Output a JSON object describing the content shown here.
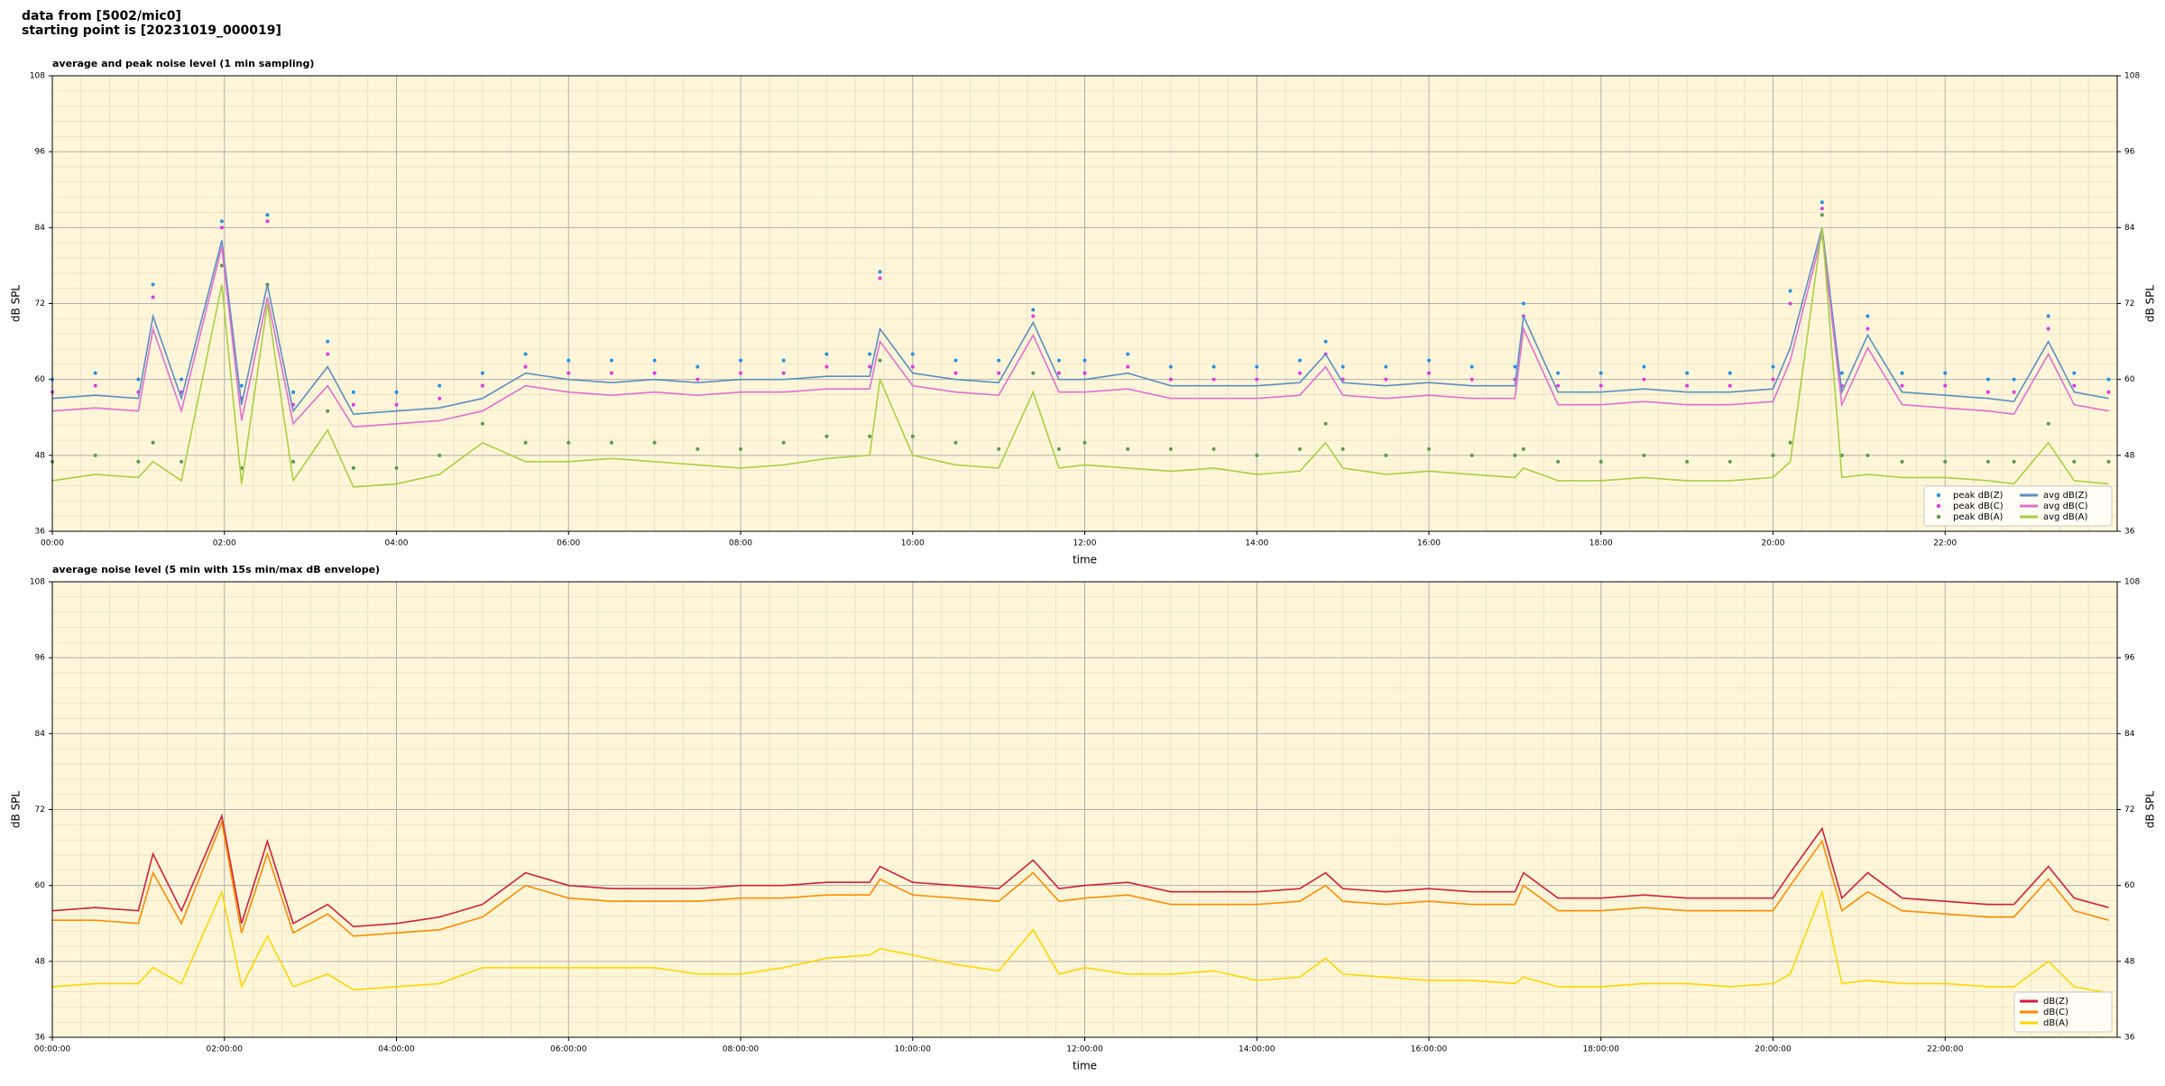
{
  "page_title": [
    "data from [5002/mic0]",
    "starting point is [20231019_000019]"
  ],
  "chart_data": [
    {
      "type": "line",
      "title": "average and peak noise level (1 min sampling)",
      "xlabel": "time",
      "ylabel": "dB SPL",
      "xlim": [
        0,
        24
      ],
      "ylim": [
        36,
        108
      ],
      "yticks": [
        36,
        48,
        60,
        72,
        84,
        96,
        108
      ],
      "xticks": [
        {
          "value": 0,
          "label": "00:00"
        },
        {
          "value": 2,
          "label": "02:00"
        },
        {
          "value": 4,
          "label": "04:00"
        },
        {
          "value": 6,
          "label": "06:00"
        },
        {
          "value": 8,
          "label": "08:00"
        },
        {
          "value": 10,
          "label": "10:00"
        },
        {
          "value": 12,
          "label": "12:00"
        },
        {
          "value": 14,
          "label": "14:00"
        },
        {
          "value": 16,
          "label": "16:00"
        },
        {
          "value": 18,
          "label": "18:00"
        },
        {
          "value": 20,
          "label": "20:00"
        },
        {
          "value": 22,
          "label": "22:00"
        }
      ],
      "grid": true,
      "minor_grid": true,
      "background": "#fff6d9",
      "legend": "lower right",
      "legend_columns": 2,
      "x": [
        0,
        0.5,
        1,
        1.17,
        1.5,
        1.97,
        2.2,
        2.5,
        2.8,
        3.2,
        3.5,
        4,
        4.5,
        5,
        5.5,
        6,
        6.5,
        7,
        7.5,
        8,
        8.5,
        9,
        9.5,
        9.62,
        10,
        10.5,
        11,
        11.4,
        11.7,
        12,
        12.5,
        13,
        13.5,
        14,
        14.5,
        14.8,
        15,
        15.5,
        16,
        16.5,
        17,
        17.1,
        17.5,
        18,
        18.5,
        19,
        19.5,
        20,
        20.2,
        20.57,
        20.8,
        21.1,
        21.5,
        22,
        22.5,
        22.8,
        23.2,
        23.5,
        23.9
      ],
      "series": [
        {
          "name": "peak dB(Z)",
          "mode": "points",
          "color": "#2a8fe0",
          "values": [
            60,
            61,
            60,
            75,
            60,
            85,
            59,
            86,
            58,
            66,
            58,
            58,
            59,
            61,
            64,
            63,
            63,
            63,
            62,
            63,
            63,
            64,
            64,
            77,
            64,
            63,
            63,
            71,
            63,
            63,
            64,
            62,
            62,
            62,
            63,
            66,
            62,
            62,
            63,
            62,
            62,
            72,
            61,
            61,
            62,
            61,
            61,
            62,
            74,
            88,
            61,
            70,
            61,
            61,
            60,
            60,
            70,
            61,
            60
          ]
        },
        {
          "name": "peak dB(C)",
          "mode": "points",
          "color": "#e03ae0",
          "values": [
            58,
            59,
            58,
            73,
            58,
            84,
            57,
            85,
            56,
            64,
            56,
            56,
            57,
            59,
            62,
            61,
            61,
            61,
            60,
            61,
            61,
            62,
            62,
            76,
            62,
            61,
            61,
            70,
            61,
            61,
            62,
            60,
            60,
            60,
            61,
            64,
            60,
            60,
            61,
            60,
            60,
            70,
            59,
            59,
            60,
            59,
            59,
            60,
            72,
            87,
            59,
            68,
            59,
            59,
            58,
            58,
            68,
            59,
            58
          ]
        },
        {
          "name": "peak dB(A)",
          "mode": "points",
          "color": "#5a9a50",
          "values": [
            47,
            48,
            47,
            50,
            47,
            78,
            46,
            75,
            47,
            55,
            46,
            46,
            48,
            53,
            50,
            50,
            50,
            50,
            49,
            49,
            50,
            51,
            51,
            63,
            51,
            50,
            49,
            61,
            49,
            50,
            49,
            49,
            49,
            48,
            49,
            53,
            49,
            48,
            49,
            48,
            48,
            49,
            47,
            47,
            48,
            47,
            47,
            48,
            50,
            86,
            48,
            48,
            47,
            47,
            47,
            47,
            53,
            47,
            47
          ]
        },
        {
          "name": "avg dB(Z)",
          "mode": "line",
          "color": "#5b8fc2",
          "values": [
            57,
            57.5,
            57,
            70,
            57,
            82,
            56,
            75,
            55,
            62,
            54.5,
            55,
            55.5,
            57,
            61,
            60,
            59.5,
            60,
            59.5,
            60,
            60,
            60.5,
            60.5,
            68,
            61,
            60,
            59.5,
            69,
            60,
            60,
            61,
            59,
            59,
            59,
            59.5,
            64,
            59.5,
            59,
            59.5,
            59,
            59,
            70,
            58,
            58,
            58.5,
            58,
            58,
            58.5,
            65,
            84,
            58,
            67,
            58,
            57.5,
            57,
            56.5,
            66,
            58,
            57
          ]
        },
        {
          "name": "avg dB(C)",
          "mode": "line",
          "color": "#e070d0",
          "values": [
            55,
            55.5,
            55,
            68,
            55,
            81,
            53.5,
            73,
            53,
            59,
            52.5,
            53,
            53.5,
            55,
            59,
            58,
            57.5,
            58,
            57.5,
            58,
            58,
            58.5,
            58.5,
            66,
            59,
            58,
            57.5,
            67,
            58,
            58,
            58.5,
            57,
            57,
            57,
            57.5,
            62,
            57.5,
            57,
            57.5,
            57,
            57,
            68,
            56,
            56,
            56.5,
            56,
            56,
            56.5,
            63,
            83,
            56,
            65,
            56,
            55.5,
            55,
            54.5,
            64,
            56,
            55
          ]
        },
        {
          "name": "avg dB(A)",
          "mode": "line",
          "color": "#a8d040",
          "values": [
            44,
            45,
            44.5,
            47,
            44,
            75,
            43.5,
            72,
            44,
            52,
            43,
            43.5,
            45,
            50,
            47,
            47,
            47.5,
            47,
            46.5,
            46,
            46.5,
            47.5,
            48,
            60,
            48,
            46.5,
            46,
            58,
            46,
            46.5,
            46,
            45.5,
            46,
            45,
            45.5,
            50,
            46,
            45,
            45.5,
            45,
            44.5,
            46,
            44,
            44,
            44.5,
            44,
            44,
            44.5,
            47,
            84,
            44.5,
            45,
            44.5,
            44.5,
            44,
            43.5,
            50,
            44,
            43.5
          ]
        }
      ]
    },
    {
      "type": "line",
      "title": "average noise level (5 min with 15s min/max dB envelope)",
      "xlabel": "time",
      "ylabel": "dB SPL",
      "xlim": [
        0,
        24
      ],
      "ylim": [
        36,
        108
      ],
      "yticks": [
        36,
        48,
        60,
        72,
        84,
        96,
        108
      ],
      "xticks": [
        {
          "value": 0,
          "label": "00:00:00"
        },
        {
          "value": 2,
          "label": "02:00:00"
        },
        {
          "value": 4,
          "label": "04:00:00"
        },
        {
          "value": 6,
          "label": "06:00:00"
        },
        {
          "value": 8,
          "label": "08:00:00"
        },
        {
          "value": 10,
          "label": "10:00:00"
        },
        {
          "value": 12,
          "label": "12:00:00"
        },
        {
          "value": 14,
          "label": "14:00:00"
        },
        {
          "value": 16,
          "label": "16:00:00"
        },
        {
          "value": 18,
          "label": "18:00:00"
        },
        {
          "value": 20,
          "label": "20:00:00"
        },
        {
          "value": 22,
          "label": "22:00:00"
        }
      ],
      "grid": true,
      "minor_grid": true,
      "background": "#fff6d9",
      "legend": "lower right",
      "legend_columns": 1,
      "x": [
        0,
        0.5,
        1,
        1.17,
        1.5,
        1.97,
        2.2,
        2.5,
        2.8,
        3.2,
        3.5,
        4,
        4.5,
        5,
        5.5,
        6,
        6.5,
        7,
        7.5,
        8,
        8.5,
        9,
        9.5,
        9.62,
        10,
        10.5,
        11,
        11.4,
        11.7,
        12,
        12.5,
        13,
        13.5,
        14,
        14.5,
        14.8,
        15,
        15.5,
        16,
        16.5,
        17,
        17.1,
        17.5,
        18,
        18.5,
        19,
        19.5,
        20,
        20.2,
        20.57,
        20.8,
        21.1,
        21.5,
        22,
        22.5,
        22.8,
        23.2,
        23.5,
        23.9
      ],
      "series": [
        {
          "name": "dB(Z)",
          "mode": "line",
          "color": "#d0203c",
          "values": [
            56,
            56.5,
            56,
            65,
            56,
            71,
            54,
            67,
            54,
            57,
            53.5,
            54,
            55,
            57,
            62,
            60,
            59.5,
            59.5,
            59.5,
            60,
            60,
            60.5,
            60.5,
            63,
            60.5,
            60,
            59.5,
            64,
            59.5,
            60,
            60.5,
            59,
            59,
            59,
            59.5,
            62,
            59.5,
            59,
            59.5,
            59,
            59,
            62,
            58,
            58,
            58.5,
            58,
            58,
            58,
            62,
            69,
            58,
            62,
            58,
            57.5,
            57,
            57,
            63,
            58,
            56.5
          ]
        },
        {
          "name": "dB(C)",
          "mode": "line",
          "color": "#ff8c00",
          "values": [
            54.5,
            54.5,
            54,
            62,
            54,
            70,
            52.5,
            65,
            52.5,
            55.5,
            52,
            52.5,
            53,
            55,
            60,
            58,
            57.5,
            57.5,
            57.5,
            58,
            58,
            58.5,
            58.5,
            61,
            58.5,
            58,
            57.5,
            62,
            57.5,
            58,
            58.5,
            57,
            57,
            57,
            57.5,
            60,
            57.5,
            57,
            57.5,
            57,
            57,
            60,
            56,
            56,
            56.5,
            56,
            56,
            56,
            60,
            67,
            56,
            59,
            56,
            55.5,
            55,
            55,
            61,
            56,
            54.5
          ]
        },
        {
          "name": "dB(A)",
          "mode": "line",
          "color": "#ffd700",
          "values": [
            44,
            44.5,
            44.5,
            47,
            44.5,
            59,
            44,
            52,
            44,
            46,
            43.5,
            44,
            44.5,
            47,
            47,
            47,
            47,
            47,
            46,
            46,
            47,
            48.5,
            49,
            50,
            49,
            47.5,
            46.5,
            53,
            46,
            47,
            46,
            46,
            46.5,
            45,
            45.5,
            48.5,
            46,
            45.5,
            45,
            45,
            44.5,
            45.5,
            44,
            44,
            44.5,
            44.5,
            44,
            44.5,
            46,
            59,
            44.5,
            45,
            44.5,
            44.5,
            44,
            44,
            48,
            44,
            43
          ]
        }
      ]
    }
  ]
}
